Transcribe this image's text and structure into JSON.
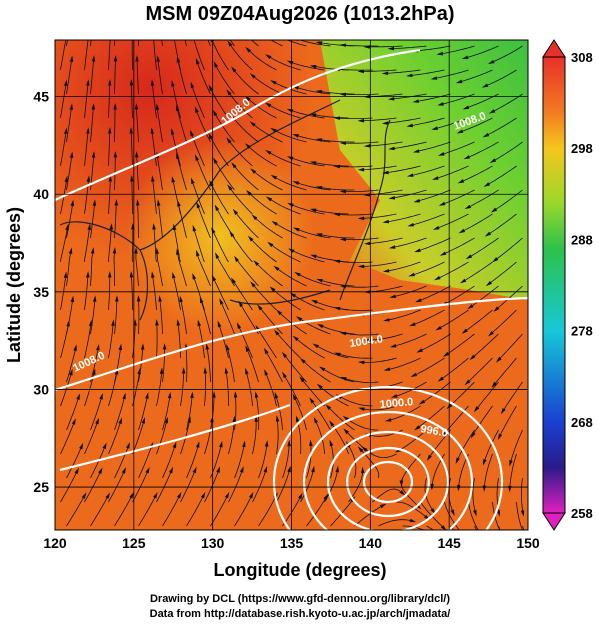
{
  "title": "MSM 09Z04Aug2026 (1013.2hPa)",
  "x_axis": {
    "label": "Longitude (degrees)",
    "lim": [
      120,
      150
    ],
    "ticks": [
      120,
      125,
      130,
      135,
      140,
      145,
      150
    ]
  },
  "y_axis": {
    "label": "Latitude  (degrees)",
    "lim": [
      22.8,
      47.9
    ],
    "ticks": [
      25,
      30,
      35,
      40,
      45
    ]
  },
  "colorbar": {
    "lim": [
      258,
      308
    ],
    "ticks": [
      258,
      268,
      278,
      288,
      298,
      308
    ]
  },
  "contour_labels": [
    "1008.0",
    "1008.0",
    "1004.0",
    "1000.0",
    "996.0",
    "1008.0"
  ],
  "footer": [
    "Drawing by DCL (https://www.gfd-dennou.org/library/dcl/)",
    "Data from http://database.rish.kyoto-u.ac.jp/arch/jmadata/"
  ]
}
